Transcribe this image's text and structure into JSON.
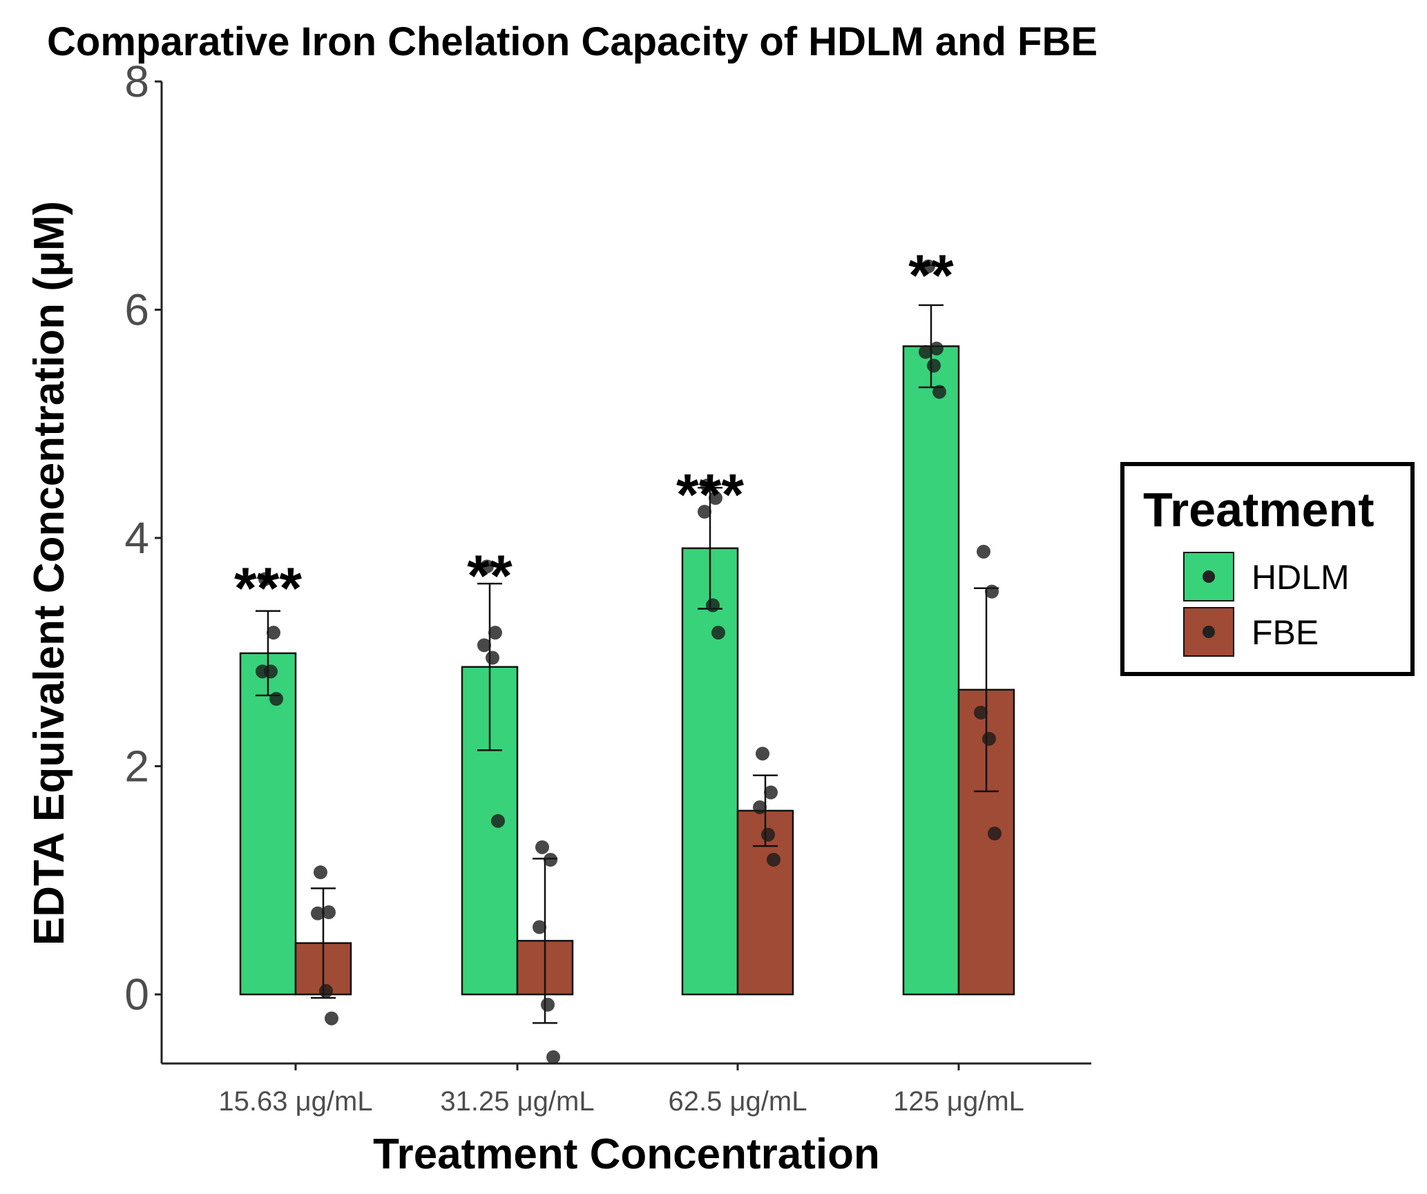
{
  "chart_data": {
    "type": "bar",
    "title": "Comparative Iron Chelation Capacity of HDLM and FBE",
    "xlabel": "Treatment Concentration",
    "ylabel": "EDTA Equivalent Concentration (μM)",
    "ylim": [
      -0.6,
      8
    ],
    "yticks": [
      0,
      2,
      4,
      6,
      8
    ],
    "grid": false,
    "categories": [
      "15.63 μg/mL",
      "31.25 μg/mL",
      "62.5 μg/mL",
      "125 μg/mL"
    ],
    "series": [
      {
        "name": "HDLM",
        "color": "#38d27a",
        "values": [
          2.99,
          2.87,
          3.91,
          5.68
        ],
        "error": [
          0.37,
          0.73,
          0.53,
          0.36
        ],
        "points": [
          [
            3.64,
            3.17,
            2.83,
            2.83,
            2.59
          ],
          [
            3.75,
            3.17,
            3.06,
            2.95,
            1.52
          ],
          [
            4.46,
            4.35,
            4.23,
            3.41,
            3.17
          ],
          [
            6.38,
            5.66,
            5.63,
            5.51,
            5.28
          ]
        ]
      },
      {
        "name": "FBE",
        "color": "#a04b35",
        "values": [
          0.45,
          0.47,
          1.61,
          2.67
        ],
        "error": [
          0.48,
          0.72,
          0.31,
          0.89
        ],
        "points": [
          [
            1.07,
            0.72,
            0.71,
            0.03,
            -0.21
          ],
          [
            1.29,
            1.18,
            0.59,
            -0.09,
            -0.55
          ],
          [
            2.11,
            1.77,
            1.64,
            1.4,
            1.18
          ],
          [
            3.88,
            3.53,
            2.47,
            2.24,
            1.41
          ]
        ]
      }
    ],
    "significance": [
      "***",
      "**",
      "***",
      "**"
    ],
    "legend": {
      "title": "Treatment",
      "position": "right"
    }
  }
}
